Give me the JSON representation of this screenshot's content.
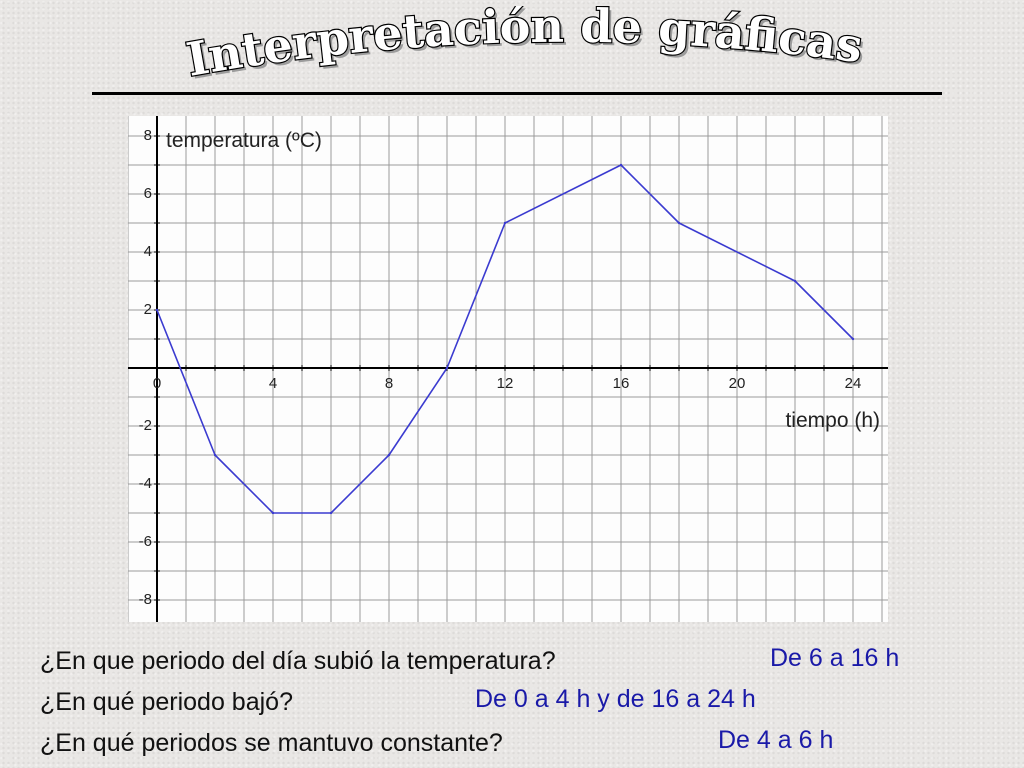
{
  "title": "Interpretación de gráficas",
  "chart_data": {
    "type": "line",
    "ylabel": "temperatura (ºC)",
    "xlabel": "tiempo (h)",
    "xlim": [
      -1,
      25
    ],
    "ylim": [
      -9,
      8.5
    ],
    "x_ticks": [
      "0",
      "4",
      "8",
      "12",
      "16",
      "20",
      "24"
    ],
    "y_ticks": [
      "8",
      "6",
      "4",
      "2",
      "-2",
      "-4",
      "-6",
      "-8"
    ],
    "grid": true,
    "series": [
      {
        "x": [
          0,
          2,
          4,
          6,
          8,
          10,
          12,
          16,
          18,
          22,
          24
        ],
        "y": [
          2,
          -3,
          -5,
          -5,
          -3,
          0,
          5,
          7,
          5,
          3,
          1
        ]
      }
    ],
    "line_color": "#3b3bd0"
  },
  "questions": [
    {
      "question": "¿En que periodo del día subió la temperatura?",
      "answer": "De 6 a 16 h"
    },
    {
      "question": "¿En qué periodo bajó?",
      "answer": "De 0 a 4 h y de 16 a 24 h"
    },
    {
      "question": "¿En qué periodos se mantuvo constante?",
      "answer": "De 4 a 6 h"
    }
  ],
  "colors": {
    "answer": "#1a1aa8",
    "question": "#111111",
    "grid": "#9a9a9a"
  }
}
